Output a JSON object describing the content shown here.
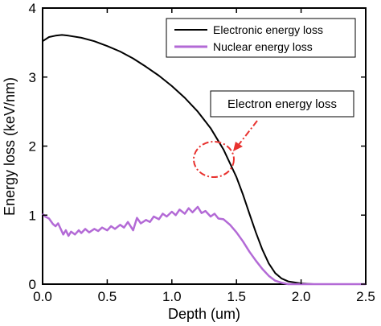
{
  "chart_data": {
    "type": "line",
    "title": "",
    "xlabel": "Depth (um)",
    "ylabel": "Energy loss (keV/nm)",
    "xlim": [
      0.0,
      2.5
    ],
    "ylim": [
      0,
      4
    ],
    "x_ticks": [
      "0.0",
      "0.5",
      "1.0",
      "1.5",
      "2.0",
      "2.5"
    ],
    "y_ticks": [
      "0",
      "1",
      "2",
      "3",
      "4"
    ],
    "grid": false,
    "legend_position": "top-right",
    "annotation": {
      "text": "Electron energy loss",
      "target_x": 1.32,
      "target_y": 1.8
    },
    "series": [
      {
        "name": "Electronic energy loss",
        "color": "#000000",
        "points": [
          [
            0.0,
            3.52
          ],
          [
            0.05,
            3.58
          ],
          [
            0.1,
            3.6
          ],
          [
            0.15,
            3.61
          ],
          [
            0.2,
            3.6
          ],
          [
            0.3,
            3.57
          ],
          [
            0.4,
            3.52
          ],
          [
            0.5,
            3.45
          ],
          [
            0.6,
            3.37
          ],
          [
            0.7,
            3.27
          ],
          [
            0.8,
            3.15
          ],
          [
            0.9,
            3.02
          ],
          [
            1.0,
            2.87
          ],
          [
            1.1,
            2.7
          ],
          [
            1.2,
            2.5
          ],
          [
            1.3,
            2.26
          ],
          [
            1.4,
            1.95
          ],
          [
            1.5,
            1.55
          ],
          [
            1.55,
            1.3
          ],
          [
            1.6,
            1.02
          ],
          [
            1.65,
            0.75
          ],
          [
            1.7,
            0.5
          ],
          [
            1.75,
            0.3
          ],
          [
            1.8,
            0.16
          ],
          [
            1.85,
            0.08
          ],
          [
            1.9,
            0.04
          ],
          [
            2.0,
            0.01
          ],
          [
            2.1,
            0.0
          ],
          [
            2.2,
            0.0
          ],
          [
            2.5,
            0.0
          ]
        ]
      },
      {
        "name": "Nuclear energy loss",
        "color": "#b36ad6",
        "points": [
          [
            0.0,
            1.02
          ],
          [
            0.02,
            0.98
          ],
          [
            0.05,
            0.95
          ],
          [
            0.08,
            0.87
          ],
          [
            0.1,
            0.84
          ],
          [
            0.12,
            0.88
          ],
          [
            0.14,
            0.8
          ],
          [
            0.16,
            0.72
          ],
          [
            0.18,
            0.78
          ],
          [
            0.2,
            0.7
          ],
          [
            0.22,
            0.76
          ],
          [
            0.25,
            0.72
          ],
          [
            0.28,
            0.78
          ],
          [
            0.3,
            0.74
          ],
          [
            0.33,
            0.8
          ],
          [
            0.36,
            0.75
          ],
          [
            0.4,
            0.8
          ],
          [
            0.43,
            0.77
          ],
          [
            0.46,
            0.82
          ],
          [
            0.5,
            0.78
          ],
          [
            0.53,
            0.84
          ],
          [
            0.56,
            0.8
          ],
          [
            0.6,
            0.86
          ],
          [
            0.63,
            0.82
          ],
          [
            0.66,
            0.9
          ],
          [
            0.7,
            0.78
          ],
          [
            0.73,
            0.96
          ],
          [
            0.76,
            0.88
          ],
          [
            0.8,
            0.93
          ],
          [
            0.83,
            0.9
          ],
          [
            0.86,
            0.98
          ],
          [
            0.9,
            0.94
          ],
          [
            0.93,
            1.02
          ],
          [
            0.96,
            0.98
          ],
          [
            1.0,
            1.05
          ],
          [
            1.03,
            1.0
          ],
          [
            1.06,
            1.08
          ],
          [
            1.1,
            1.02
          ],
          [
            1.13,
            1.1
          ],
          [
            1.16,
            1.04
          ],
          [
            1.2,
            1.12
          ],
          [
            1.23,
            1.03
          ],
          [
            1.26,
            1.06
          ],
          [
            1.3,
            0.98
          ],
          [
            1.33,
            1.02
          ],
          [
            1.36,
            0.95
          ],
          [
            1.4,
            0.94
          ],
          [
            1.45,
            0.86
          ],
          [
            1.5,
            0.75
          ],
          [
            1.55,
            0.62
          ],
          [
            1.6,
            0.47
          ],
          [
            1.65,
            0.34
          ],
          [
            1.7,
            0.22
          ],
          [
            1.75,
            0.12
          ],
          [
            1.8,
            0.05
          ],
          [
            1.85,
            0.02
          ],
          [
            1.9,
            0.0
          ],
          [
            2.0,
            0.0
          ],
          [
            2.2,
            0.0
          ],
          [
            2.5,
            0.0
          ]
        ]
      }
    ]
  }
}
